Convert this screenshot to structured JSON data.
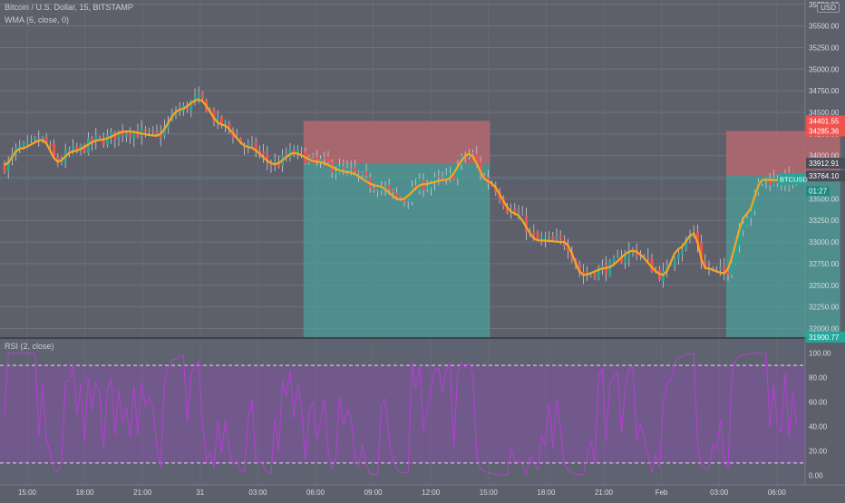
{
  "header": {
    "symbol_line": "Bitcoin / U.S. Dollar, 15, BITSTAMP",
    "wma_label": "WMA (6, close, 0)",
    "rsi_label": "RSI (2, close)",
    "currency_button": "USD"
  },
  "colors": {
    "background": "#5d606b",
    "grid": "#70737e",
    "bull": "#26a69a",
    "bear": "#ef5350",
    "wma": "#f5a623",
    "rsi": "#b040d0",
    "rsi_band": "#8a4fb0",
    "stop_zone": "#c06a70",
    "target_zone": "#4aa39a"
  },
  "chart_data": [
    {
      "type": "candlestick",
      "y_axis": {
        "ylim": [
          31900,
          35800
        ],
        "tick_labels": [
          "35750.00",
          "35500.00",
          "35250.00",
          "35000.00",
          "34750.00",
          "34500.00",
          "34250.00",
          "34000.00",
          "33750.00",
          "33500.00",
          "33250.00",
          "33000.00",
          "32750.00",
          "32500.00",
          "32250.00",
          "32000.00"
        ],
        "tick_values": [
          35750,
          35500,
          35250,
          35000,
          34750,
          34500,
          34250,
          34000,
          33750,
          33500,
          33250,
          33000,
          32750,
          32500,
          32250,
          32000
        ]
      },
      "x_axis": {
        "tick_labels": [
          "15:00",
          "18:00",
          "21:00",
          "31",
          "03:00",
          "06:00",
          "09:00",
          "12:00",
          "15:00",
          "18:00",
          "21:00",
          "Feb",
          "03:00",
          "06:00"
        ]
      },
      "price_labels": [
        {
          "text": "34401.55",
          "value": 34401.55,
          "color": "#ef5350"
        },
        {
          "text": "34285.36",
          "value": 34285.36,
          "color": "#ef5350"
        },
        {
          "text": "33912.91",
          "value": 33912.91,
          "color": "#4a4d57"
        },
        {
          "text": "33764.10",
          "value": 33764.1,
          "color": "#4a4d57"
        },
        {
          "text": "31900.77",
          "value": 31900.77,
          "color": "#26a69a"
        }
      ],
      "last_price": {
        "symbol": "BTCUSD",
        "value": 33730,
        "countdown": "01:27"
      },
      "positions": [
        {
          "side": "short",
          "entry": 33912.91,
          "stop": 34401.55,
          "target": 31900.77,
          "bars": [
            79,
            127
          ]
        },
        {
          "side": "long",
          "entry": 33764.1,
          "stop": 34285.36,
          "target": 31900.77,
          "bars": [
            190,
            219
          ]
        }
      ],
      "wma_anchors": [
        [
          0,
          33890
        ],
        [
          4,
          34080
        ],
        [
          10,
          34180
        ],
        [
          14,
          33930
        ],
        [
          18,
          34050
        ],
        [
          25,
          34180
        ],
        [
          32,
          34280
        ],
        [
          40,
          34230
        ],
        [
          46,
          34530
        ],
        [
          51,
          34650
        ],
        [
          57,
          34360
        ],
        [
          64,
          34100
        ],
        [
          71,
          33900
        ],
        [
          76,
          34030
        ],
        [
          82,
          33930
        ],
        [
          90,
          33810
        ],
        [
          98,
          33650
        ],
        [
          104,
          33490
        ],
        [
          110,
          33670
        ],
        [
          116,
          33720
        ],
        [
          122,
          34020
        ],
        [
          127,
          33700
        ],
        [
          134,
          33330
        ],
        [
          140,
          33020
        ],
        [
          147,
          33000
        ],
        [
          152,
          32620
        ],
        [
          158,
          32700
        ],
        [
          165,
          32900
        ],
        [
          173,
          32620
        ],
        [
          177,
          32920
        ],
        [
          181,
          33100
        ],
        [
          184,
          32700
        ],
        [
          189,
          32640
        ],
        [
          195,
          33330
        ],
        [
          199,
          33720
        ],
        [
          208,
          33710
        ]
      ],
      "candles_meta": {
        "count": 209,
        "bar_spacing_note": "15 minute bars"
      }
    },
    {
      "type": "line",
      "name": "RSI (2, close)",
      "ylim": [
        -5,
        105
      ],
      "tick_labels": [
        "100.00",
        "80.00",
        "60.00",
        "40.00",
        "20.00",
        "0.00"
      ],
      "tick_values": [
        100,
        80,
        60,
        40,
        20,
        0
      ],
      "band": [
        10,
        90
      ],
      "series_source": "derived from candle closes"
    }
  ]
}
